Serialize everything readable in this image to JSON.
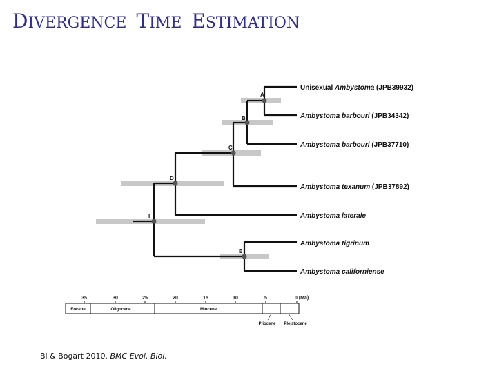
{
  "slide": {
    "title_words": [
      "Divergence",
      "Time",
      "Estimation"
    ],
    "title_color": "#2b2b9a"
  },
  "tree": {
    "taxa": [
      {
        "prefix": "Unisexual ",
        "name": "Ambystoma",
        "suffix": " (JPB39932)"
      },
      {
        "prefix": "",
        "name": "Ambystoma  barbouri",
        "suffix": " (JPB34342)"
      },
      {
        "prefix": "",
        "name": "Ambystoma barbouri",
        "suffix": " (JPB37710)"
      },
      {
        "prefix": "",
        "name": "Ambystoma texanum",
        "suffix": " (JPB37892)"
      },
      {
        "prefix": "",
        "name": "Ambystoma laterale",
        "suffix": ""
      },
      {
        "prefix": "",
        "name": "Ambystoma tigrinum",
        "suffix": ""
      },
      {
        "prefix": "",
        "name": "Ambystoma californiense",
        "suffix": ""
      }
    ],
    "nodes": [
      "A",
      "B",
      "C",
      "D",
      "E",
      "F"
    ],
    "branch_color": "#111111",
    "interval_color": "#c8c8c8"
  },
  "timescale": {
    "ticks": [
      "35",
      "30",
      "25",
      "20",
      "15",
      "10",
      "5",
      "0 (Ma)"
    ],
    "epochs": [
      "Eocene",
      "Oligocene",
      "Miocene",
      "Pliocene",
      "Pleistocene"
    ]
  },
  "citation": {
    "authors": "Bi & Bogart 2010.",
    "journal": "BMC Evol. Biol."
  }
}
